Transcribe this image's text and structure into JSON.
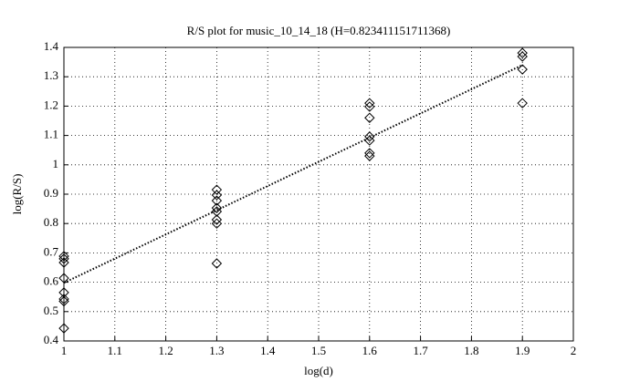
{
  "chart_data": {
    "type": "scatter",
    "title": "R/S plot for music_10_14_18 (H=0.823411151711368)",
    "x_label": "log(d)",
    "y_label": "log(R/S)",
    "points": {
      "marker": "diamond",
      "color": "#000000",
      "x": [
        1,
        1,
        1,
        1,
        1,
        1,
        1,
        1,
        1.3,
        1.3,
        1.3,
        1.3,
        1.3,
        1.3,
        1.3,
        1.3,
        1.6,
        1.6,
        1.6,
        1.6,
        1.6,
        1.6,
        1.6,
        1.9,
        1.9,
        1.9,
        1.9
      ],
      "y": [
        0.689,
        0.68,
        0.667,
        0.614,
        0.565,
        0.543,
        0.535,
        0.443,
        0.915,
        0.897,
        0.878,
        0.853,
        0.841,
        0.813,
        0.8,
        0.664,
        1.21,
        1.198,
        1.16,
        1.096,
        1.083,
        1.04,
        1.03,
        1.381,
        1.369,
        1.325,
        1.21
      ]
    },
    "fit": {
      "style": "dotted",
      "color": "#000000",
      "x": [
        1,
        1.9
      ],
      "y": [
        0.598,
        1.34
      ]
    },
    "xlim": [
      1,
      2
    ],
    "xticks": [
      1,
      1.1,
      1.2,
      1.3,
      1.4,
      1.5,
      1.6,
      1.7,
      1.8,
      1.9,
      2
    ],
    "ylim": [
      0.4,
      1.4
    ],
    "yticks": [
      0.4,
      0.5,
      0.6,
      0.7,
      0.8,
      0.9,
      1,
      1.1,
      1.2,
      1.3,
      1.4
    ],
    "grid": true
  }
}
